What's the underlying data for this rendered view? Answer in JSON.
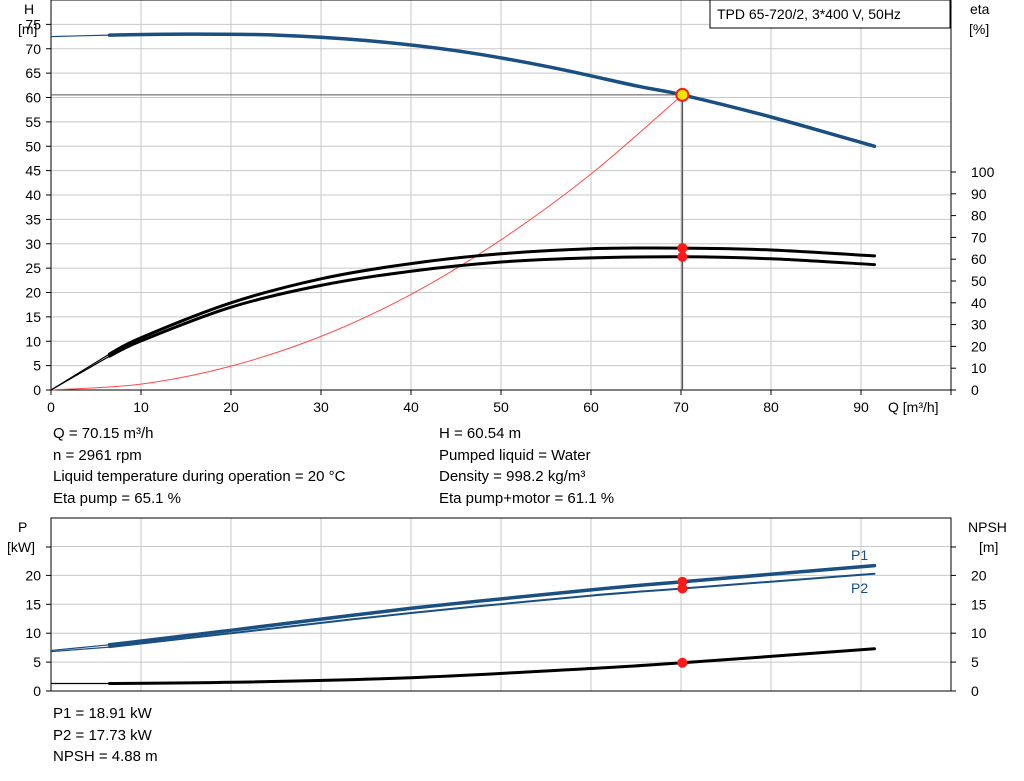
{
  "pump_title": "TPD 65-720/2, 3*400 V, 50Hz",
  "colors": {
    "head": "#1a4f82",
    "efficiency": "#000000",
    "p1": "#1a4f82",
    "p2": "#1a4f82",
    "npsh": "#000000",
    "system": "#ff4b4b",
    "point": "#ff1a1a",
    "head_point_fill": "#f2e600",
    "grid": "#c8c8c8"
  },
  "upper_axes": {
    "left_label_line1": "H",
    "left_label_line2": "[m]",
    "right_label_line1": "eta",
    "right_label_line2": "[%]",
    "x_label": "Q [m³/h]",
    "x_ticks": [
      "0",
      "10",
      "20",
      "30",
      "40",
      "50",
      "60",
      "70",
      "80",
      "90"
    ],
    "left_ticks": [
      "0",
      "5",
      "10",
      "15",
      "20",
      "25",
      "30",
      "35",
      "40",
      "45",
      "50",
      "55",
      "60",
      "65",
      "70",
      "75"
    ],
    "right_ticks": [
      "0",
      "10",
      "20",
      "30",
      "40",
      "50",
      "60",
      "70",
      "80",
      "90",
      "100"
    ]
  },
  "lower_axes": {
    "left_label_line1": "P",
    "left_label_line2": "[kW]",
    "right_label_line1": "NPSH",
    "right_label_line2": "[m]",
    "left_ticks": [
      "0",
      "5",
      "10",
      "15",
      "20"
    ],
    "right_ticks": [
      "0",
      "5",
      "10",
      "15",
      "20"
    ],
    "p1_label": "P1",
    "p2_label": "P2"
  },
  "chart_data": [
    {
      "type": "line",
      "x_unit": "m³/h",
      "xlim": [
        0,
        100
      ],
      "ylim_left": [
        0,
        80
      ],
      "ylim_right_percent": [
        0,
        100
      ],
      "grid": true,
      "series": [
        {
          "name": "H",
          "axis": "left",
          "unit": "m",
          "x": [
            0,
            6.5,
            15,
            25,
            35,
            45,
            55,
            65,
            70.15,
            80,
            91.5
          ],
          "y": [
            72.5,
            72.8,
            73.0,
            72.8,
            71.7,
            69.6,
            66.4,
            62.4,
            60.54,
            56.0,
            50.0
          ]
        },
        {
          "name": "Eta pump",
          "axis": "right",
          "unit": "%",
          "x": [
            0,
            6.5,
            10,
            20,
            30,
            40,
            50,
            60,
            70.15,
            80,
            91.5
          ],
          "y": [
            0,
            16.5,
            24,
            40,
            51,
            58,
            62.5,
            64.8,
            65.1,
            64.2,
            61.5
          ]
        },
        {
          "name": "Eta pump+motor",
          "axis": "right",
          "unit": "%",
          "x": [
            0,
            6.5,
            10,
            20,
            30,
            40,
            50,
            60,
            70.15,
            80,
            91.5
          ],
          "y": [
            0,
            15.5,
            22.5,
            38,
            48,
            54.5,
            58.7,
            60.6,
            61.1,
            60.2,
            57.5
          ]
        },
        {
          "name": "System",
          "axis": "left",
          "unit": "m",
          "x": [
            0,
            10,
            20,
            30,
            40,
            50,
            60,
            70.15
          ],
          "y": [
            0,
            1.2,
            4.9,
            11.0,
            19.6,
            30.8,
            44.3,
            60.54
          ]
        }
      ],
      "operating_point": {
        "Q": 70.15,
        "H": 60.54,
        "eta_pump": 65.1,
        "eta_pump_motor": 61.1
      }
    },
    {
      "type": "line",
      "x_unit": "m³/h",
      "xlim": [
        0,
        100
      ],
      "ylim_left_kW": [
        0,
        25
      ],
      "ylim_right_m": [
        0,
        25
      ],
      "grid": true,
      "series": [
        {
          "name": "P1",
          "axis": "left",
          "unit": "kW",
          "x": [
            0,
            6.5,
            20,
            40,
            60,
            70.15,
            91.5
          ],
          "y": [
            7.0,
            8.0,
            10.5,
            14.3,
            17.5,
            18.91,
            21.7
          ]
        },
        {
          "name": "P2",
          "axis": "left",
          "unit": "kW",
          "x": [
            0,
            6.5,
            20,
            40,
            60,
            70.15,
            91.5
          ],
          "y": [
            6.8,
            7.6,
            10.0,
            13.5,
            16.5,
            17.73,
            20.3
          ]
        },
        {
          "name": "NPSH",
          "axis": "right",
          "unit": "m",
          "x": [
            0,
            6.5,
            20,
            40,
            60,
            70.15,
            91.5
          ],
          "y": [
            1.3,
            1.3,
            1.5,
            2.3,
            3.9,
            4.88,
            7.3
          ]
        }
      ],
      "operating_point": {
        "Q": 70.15,
        "P1": 18.91,
        "P2": 17.73,
        "NPSH": 4.88
      }
    }
  ],
  "info": {
    "q": "Q = 70.15 m³/h",
    "n": "n = 2961 rpm",
    "liquid_temp": "Liquid temperature during operation = 20 °C",
    "eta_pump": "Eta pump = 65.1 %",
    "h": "H = 60.54 m",
    "pumped_liquid": "Pumped liquid = Water",
    "density": "Density = 998.2 kg/m³",
    "eta_pump_motor": "Eta pump+motor = 61.1 %",
    "p1": "P1 = 18.91 kW",
    "p2": "P2 = 17.73 kW",
    "npsh": "NPSH = 4.88 m"
  }
}
